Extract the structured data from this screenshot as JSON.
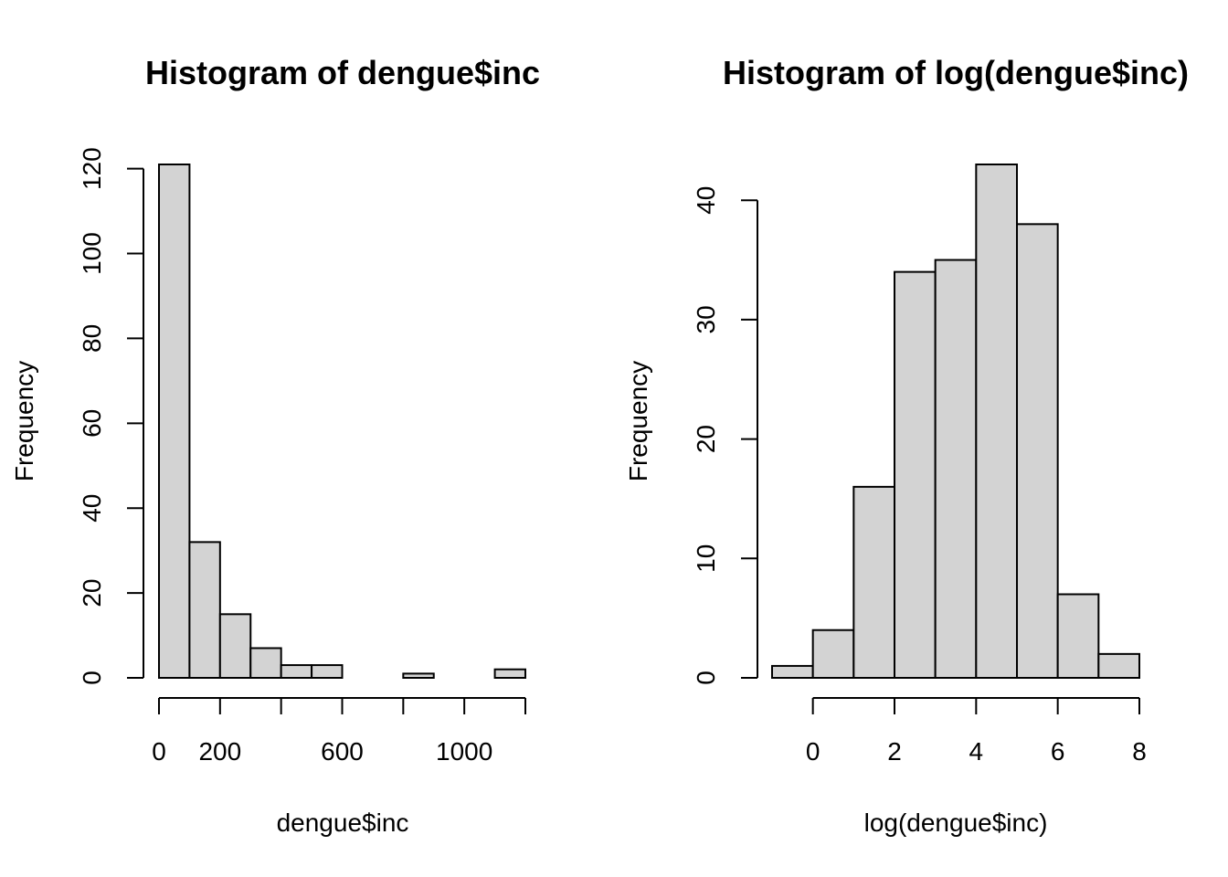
{
  "chart_data": [
    {
      "type": "bar",
      "title": "Histogram of dengue$inc",
      "xlabel": "dengue$inc",
      "ylabel": "Frequency",
      "bin_edges": [
        0,
        100,
        200,
        300,
        400,
        500,
        600,
        700,
        800,
        900,
        1000,
        1100,
        1200
      ],
      "values": [
        121,
        32,
        15,
        7,
        3,
        3,
        0,
        0,
        1,
        0,
        0,
        2
      ],
      "xticks": [
        0,
        200,
        600,
        1000
      ],
      "xtick_labels": [
        "0",
        "200",
        "600",
        "1000"
      ],
      "xaxis_range": [
        0,
        1200
      ],
      "yticks": [
        0,
        20,
        40,
        60,
        80,
        100,
        120
      ],
      "ytick_labels": [
        "0",
        "20",
        "40",
        "60",
        "80",
        "100",
        "120"
      ],
      "ylim": [
        0,
        121
      ],
      "colors": {
        "bar_fill": "#d3d3d3",
        "bar_stroke": "#000000"
      }
    },
    {
      "type": "bar",
      "title": "Histogram of log(dengue$inc)",
      "xlabel": "log(dengue$inc)",
      "ylabel": "Frequency",
      "bin_edges": [
        -1,
        0,
        1,
        2,
        3,
        4,
        5,
        6,
        7,
        8
      ],
      "values": [
        1,
        4,
        16,
        34,
        35,
        43,
        38,
        7,
        2
      ],
      "xticks": [
        0,
        2,
        4,
        6,
        8
      ],
      "xtick_labels": [
        "0",
        "2",
        "4",
        "6",
        "8"
      ],
      "xaxis_range": [
        0,
        8
      ],
      "yticks": [
        0,
        10,
        20,
        30,
        40
      ],
      "ytick_labels": [
        "0",
        "10",
        "20",
        "30",
        "40"
      ],
      "ylim": [
        0,
        43
      ],
      "colors": {
        "bar_fill": "#d3d3d3",
        "bar_stroke": "#000000"
      }
    }
  ]
}
